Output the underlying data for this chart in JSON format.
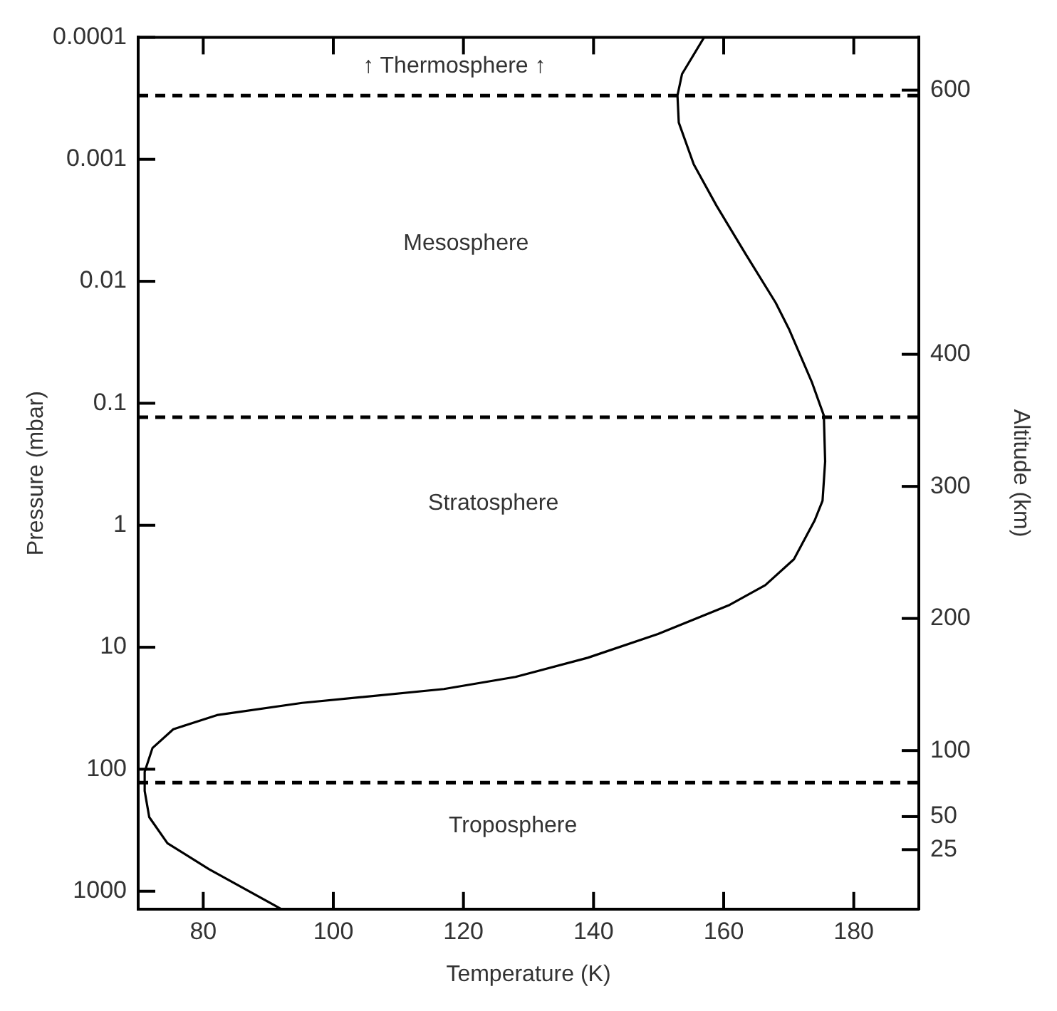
{
  "chart_data": {
    "type": "line",
    "xlabel": "Temperature (K)",
    "ylabel": "Pressure (mbar)",
    "y2label": "Altitude (km)",
    "xlim": [
      70,
      190
    ],
    "xticks": [
      80,
      100,
      120,
      140,
      160,
      180
    ],
    "ylim": [
      1400,
      0.0001
    ],
    "yticks": [
      0.0001,
      0.001,
      0.01,
      0.1,
      1,
      10,
      100,
      1000
    ],
    "y2lim": [
      -20,
      640
    ],
    "y2ticks": [
      600,
      400,
      300,
      200,
      100,
      50,
      25
    ],
    "log": true,
    "grid": false,
    "legend": false,
    "marker": "none",
    "line_style": "solid",
    "series": [
      {
        "color": "#000000",
        "x": [
          157,
          153.6,
          152.9,
          153.1,
          155.4,
          158.9,
          163.4,
          168,
          170.1,
          173.6,
          175.4,
          175.6,
          175.2,
          174,
          170.8,
          166.4,
          160.9,
          149.9,
          139.1,
          128,
          117,
          95.2,
          82.1,
          75.4,
          72.2,
          71,
          71,
          71.7,
          74.5,
          80.9,
          92
        ],
        "values": [
          0.0001,
          0.0002,
          0.0003,
          0.0005,
          0.0011,
          0.0024,
          0.006,
          0.015,
          0.025,
          0.068,
          0.126,
          0.3,
          0.63,
          0.91,
          1.9,
          3.1,
          4.5,
          7.8,
          12.2,
          17.5,
          22,
          28.6,
          36,
          47,
          67,
          105,
          151,
          247,
          404,
          661,
          1400
        ]
      }
    ],
    "ref_lines": [
      {
        "axis": "y",
        "value": 0.0003,
        "line_style": "dashed",
        "color": "#000000"
      },
      {
        "axis": "y",
        "value": 0.13,
        "line_style": "dashed",
        "color": "#000000"
      },
      {
        "axis": "y",
        "value": 129,
        "line_style": "dashed",
        "color": "#000000"
      }
    ],
    "annotations": [
      "↑ Thermosphere ↑",
      "Mesosphere",
      "Stratosphere",
      "Troposphere"
    ]
  }
}
